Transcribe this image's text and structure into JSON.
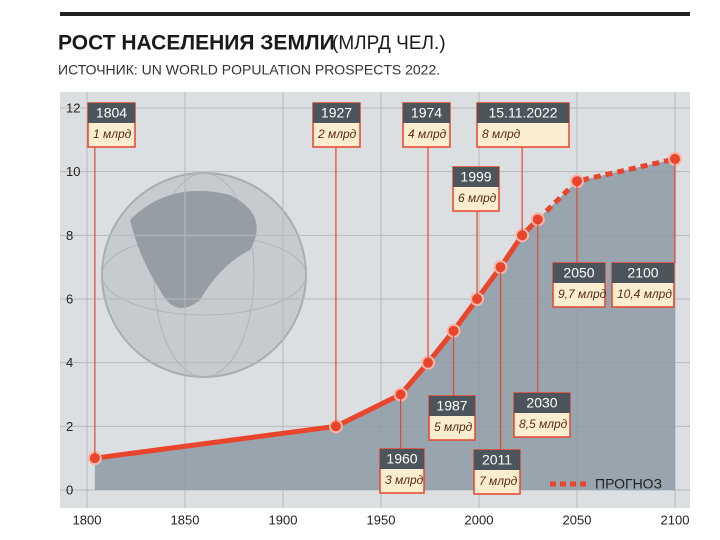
{
  "chart_data": {
    "type": "line",
    "title": "РОСТ НАСЕЛЕНИЯ ЗЕМЛИ",
    "title_unit": "(МЛРД ЧЕЛ.)",
    "subtitle": "ИСТОЧНИК: UN WORLD POPULATION PROSPECTS 2022.",
    "x": [
      1804,
      1927,
      1960,
      1974,
      1987,
      1999,
      2011,
      2022,
      2030,
      2050,
      2100
    ],
    "point_labels": [
      "1804",
      "1927",
      "1960",
      "1974",
      "1987",
      "1999",
      "2011",
      "15.11.2022",
      "2030",
      "2050",
      "2100"
    ],
    "series": [
      {
        "color": "#e8452c",
        "values": [
          1,
          2,
          3,
          4,
          5,
          6,
          7,
          8,
          8.5,
          null,
          null
        ],
        "value_labels": [
          "1 млрд",
          "2 млрд",
          "3 млрд",
          "4 млрд",
          "5 млрд",
          "6 млрд",
          "7 млрд",
          "8 млрд",
          "8,5 млрд",
          null,
          null
        ]
      },
      {
        "name": "ПРОГНОЗ",
        "color": "#e8452c",
        "dashed": true,
        "values": [
          null,
          null,
          null,
          null,
          null,
          null,
          null,
          null,
          8.5,
          9.7,
          10.4
        ],
        "value_labels": [
          null,
          null,
          null,
          null,
          null,
          null,
          null,
          null,
          null,
          "9,7 млрд",
          "10,4 млрд"
        ]
      }
    ],
    "xlim": [
      1800,
      2100
    ],
    "xticks": [
      1800,
      1850,
      1900,
      1950,
      2000,
      2050,
      2100
    ],
    "ylim": [
      0,
      12
    ],
    "yticks": [
      0,
      2,
      4,
      6,
      8,
      10,
      12
    ],
    "grid": true,
    "area_color": "#8c9aa5",
    "legend": "lower right"
  }
}
